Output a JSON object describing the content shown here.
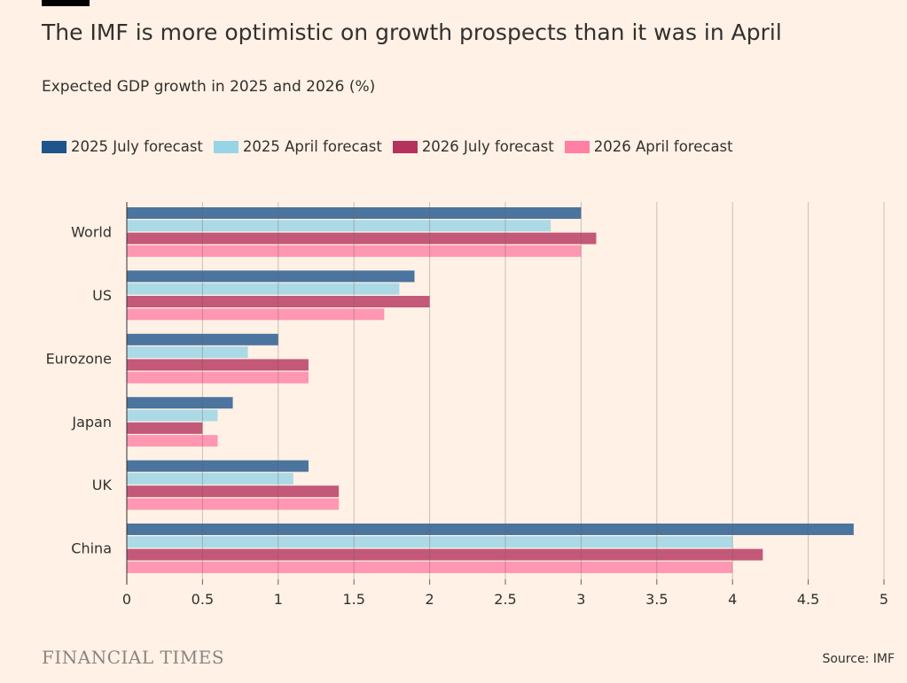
{
  "title": "The IMF is more optimistic on growth prospects than it was in April",
  "subtitle": "Expected GDP growth in 2025 and 2026 (%)",
  "brand": "FINANCIAL TIMES",
  "source": "Source: IMF",
  "chart_data": {
    "type": "bar",
    "orientation": "horizontal",
    "categories": [
      "World",
      "US",
      "Eurozone",
      "Japan",
      "UK",
      "China"
    ],
    "series": [
      {
        "name": "2025 July forecast",
        "color": "#1e558c",
        "values": [
          3.0,
          1.9,
          1.0,
          0.7,
          1.2,
          4.8
        ]
      },
      {
        "name": "2025 April forecast",
        "color": "#96d4e6",
        "values": [
          2.8,
          1.8,
          0.8,
          0.6,
          1.1,
          4.0
        ]
      },
      {
        "name": "2026 July forecast",
        "color": "#b5325d",
        "values": [
          3.1,
          2.0,
          1.2,
          0.5,
          1.4,
          4.2
        ]
      },
      {
        "name": "2026 April forecast",
        "color": "#ff7fa5",
        "values": [
          3.0,
          1.7,
          1.2,
          0.6,
          1.4,
          4.0
        ]
      }
    ],
    "xlim": [
      0,
      5
    ],
    "xticks": [
      "0",
      "0.5",
      "1",
      "1.5",
      "2",
      "2.5",
      "3",
      "3.5",
      "4",
      "4.5",
      "5"
    ],
    "grid": true,
    "legend": "top-left"
  }
}
